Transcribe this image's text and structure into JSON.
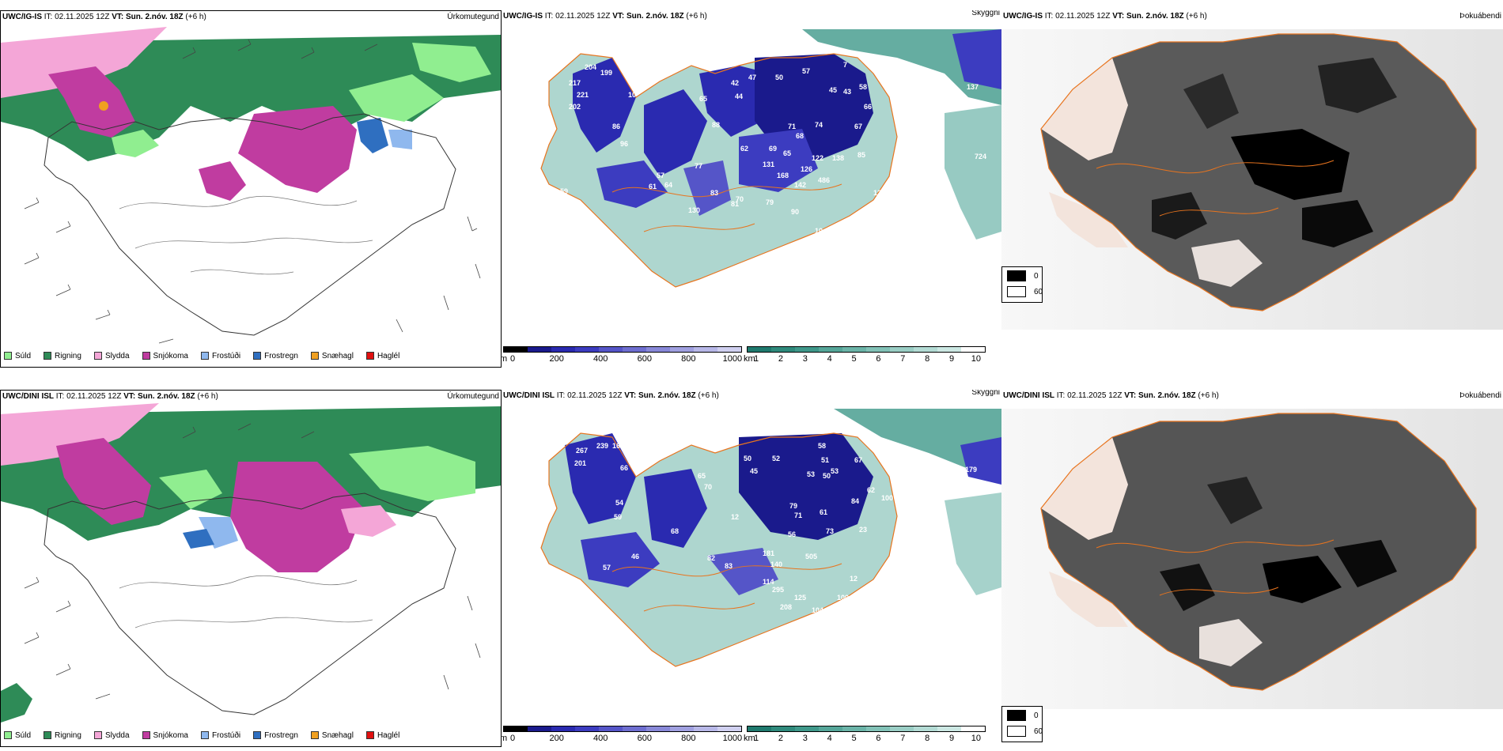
{
  "panels": [
    {
      "model": "UWC/IG-IS",
      "init_label": "IT:",
      "init_time": "02.11.2025 12Z",
      "valid_label": "VT:",
      "valid_time": "Sun. 2.nóv. 18Z",
      "lead": "(+6 h)",
      "field": "Úrkomutegund"
    },
    {
      "model": "UWC/IG-IS",
      "init_label": "IT:",
      "init_time": "02.11.2025 12Z",
      "valid_label": "VT:",
      "valid_time": "Sun. 2.nóv. 18Z",
      "lead": "(+6 h)",
      "field": "Skyggni"
    },
    {
      "model": "UWC/IG-IS",
      "init_label": "IT:",
      "init_time": "02.11.2025 12Z",
      "valid_label": "VT:",
      "valid_time": "Sun. 2.nóv. 18Z",
      "lead": "(+6 h)",
      "field": "Þokuábendi"
    },
    {
      "model": "UWC/DINI ISL",
      "init_label": "IT:",
      "init_time": "02.11.2025 12Z",
      "valid_label": "VT:",
      "valid_time": "Sun. 2.nóv. 18Z",
      "lead": "(+6 h)",
      "field": "Úrkomutegund"
    },
    {
      "model": "UWC/DINI ISL",
      "init_label": "IT:",
      "init_time": "02.11.2025 12Z",
      "valid_label": "VT:",
      "valid_time": "Sun. 2.nóv. 18Z",
      "lead": "(+6 h)",
      "field": "Skyggni"
    },
    {
      "model": "UWC/DINI ISL",
      "init_label": "IT:",
      "init_time": "02.11.2025 12Z",
      "valid_label": "VT:",
      "valid_time": "Sun. 2.nóv. 18Z",
      "lead": "(+6 h)",
      "field": "Þokuábendi"
    }
  ],
  "precip_legend": [
    {
      "label": "Súld",
      "color": "#90ee90"
    },
    {
      "label": "Rigning",
      "color": "#2e8b57"
    },
    {
      "label": "Slydda",
      "color": "#f4a6d7"
    },
    {
      "label": "Snjókoma",
      "color": "#c03ca0"
    },
    {
      "label": "Frostúði",
      "color": "#8fb8ee"
    },
    {
      "label": "Frostregn",
      "color": "#2f6fc0"
    },
    {
      "label": "Snæhagl",
      "color": "#f0a020"
    },
    {
      "label": "Haglél",
      "color": "#e01010"
    }
  ],
  "visibility_cbar_m": {
    "unit": "m",
    "ticks": [
      "0",
      "200",
      "400",
      "600",
      "800",
      "1000"
    ],
    "colors": [
      "#000000",
      "#1a1a8c",
      "#2a2ab0",
      "#3c3cc0",
      "#5555c8",
      "#6e6ed0",
      "#8888d8",
      "#a0a0e0",
      "#b8b8e8",
      "#d0d0f0"
    ]
  },
  "visibility_cbar_km": {
    "unit": "km",
    "ticks": [
      "1",
      "2",
      "3",
      "4",
      "5",
      "6",
      "7",
      "8",
      "9",
      "10"
    ],
    "colors": [
      "#1f7a6e",
      "#2f8a7c",
      "#3f988a",
      "#55a699",
      "#6bb4a8",
      "#82c2b7",
      "#9acec5",
      "#b3dbd4",
      "#cce8e3",
      "#ffffff"
    ]
  },
  "fog_legend": {
    "items": [
      {
        "label": "0",
        "color": "#000000"
      },
      {
        "label": "60",
        "color": "#ffffff"
      }
    ]
  },
  "visibility_labels_top": [
    "204",
    "199",
    "217",
    "221",
    "202",
    "10",
    "86",
    "96",
    "65",
    "88",
    "42",
    "47",
    "44",
    "50",
    "57",
    "7",
    "45",
    "43",
    "58",
    "137",
    "67",
    "66",
    "74",
    "71",
    "68",
    "62",
    "69",
    "65",
    "122",
    "138",
    "85",
    "126",
    "168",
    "77",
    "131",
    "486",
    "142",
    "61",
    "57",
    "64",
    "83",
    "70",
    "79",
    "90",
    "10",
    "59",
    "130",
    "81",
    "12",
    "88",
    "724"
  ],
  "visibility_labels_bottom": [
    "267",
    "239",
    "162",
    "201",
    "66",
    "65",
    "70",
    "50",
    "52",
    "45",
    "58",
    "51",
    "53",
    "50",
    "53",
    "67",
    "179",
    "84",
    "62",
    "100",
    "54",
    "59",
    "68",
    "12",
    "79",
    "71",
    "61",
    "73",
    "56",
    "23",
    "82",
    "83",
    "46",
    "57",
    "59",
    "181",
    "140",
    "505",
    "114",
    "295",
    "125",
    "12",
    "100",
    "104",
    "208"
  ]
}
